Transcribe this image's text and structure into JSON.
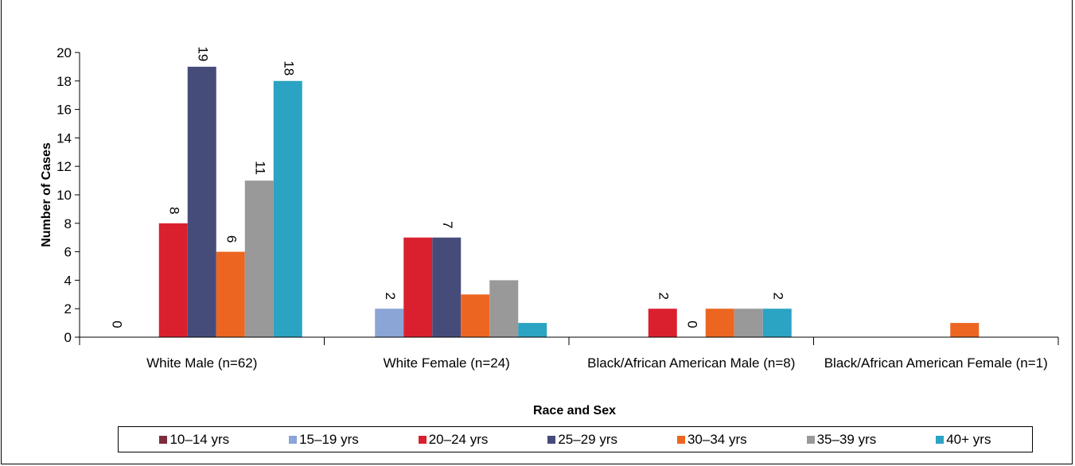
{
  "chart_data": {
    "type": "bar",
    "xlabel": "Race and Sex",
    "ylabel": "Number of Cases",
    "ylim": [
      0,
      20
    ],
    "yticks": [
      0,
      2,
      4,
      6,
      8,
      10,
      12,
      14,
      16,
      18,
      20
    ],
    "grid": false,
    "legend_position": "bottom",
    "categories": [
      "White Male (n=62)",
      "White Female (n=24)",
      "Black/African American Male (n=8)",
      "Black/African American Female (n=1)"
    ],
    "series": [
      {
        "name": "10–14 yrs",
        "color": "#7b2c3f",
        "values": [
          0,
          0,
          0,
          0
        ]
      },
      {
        "name": "15–19 yrs",
        "color": "#8aa5d6",
        "values": [
          0,
          2,
          0,
          0
        ]
      },
      {
        "name": "20–24 yrs",
        "color": "#da202e",
        "values": [
          8,
          7,
          2,
          0
        ]
      },
      {
        "name": "25–29 yrs",
        "color": "#464c7a",
        "values": [
          19,
          7,
          0,
          0
        ]
      },
      {
        "name": "30–34 yrs",
        "color": "#ec6621",
        "values": [
          6,
          3,
          2,
          1
        ]
      },
      {
        "name": "35–39 yrs",
        "color": "#999999",
        "values": [
          11,
          4,
          2,
          0
        ]
      },
      {
        "name": "40+ yrs",
        "color": "#2ba3c2",
        "values": [
          18,
          1,
          2,
          0
        ]
      }
    ],
    "data_labels": [
      {
        "category": 0,
        "series": 0,
        "text": "0"
      },
      {
        "category": 0,
        "series": 2,
        "text": "8"
      },
      {
        "category": 0,
        "series": 3,
        "text": "19"
      },
      {
        "category": 0,
        "series": 4,
        "text": "6"
      },
      {
        "category": 0,
        "series": 5,
        "text": "11"
      },
      {
        "category": 0,
        "series": 6,
        "text": "18"
      },
      {
        "category": 1,
        "series": 1,
        "text": "2"
      },
      {
        "category": 1,
        "series": 3,
        "text": "7"
      },
      {
        "category": 2,
        "series": 2,
        "text": "2"
      },
      {
        "category": 2,
        "series": 3,
        "text": "0"
      },
      {
        "category": 2,
        "series": 6,
        "text": "2"
      }
    ]
  }
}
